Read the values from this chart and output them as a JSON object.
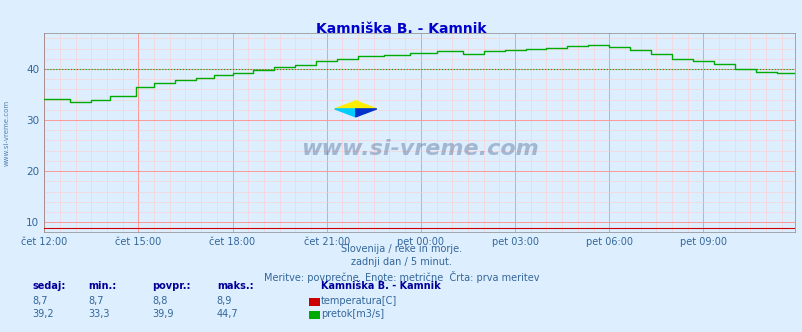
{
  "title": "Kamniška B. - Kamnik",
  "bg_color": "#ddeeff",
  "plot_bg_color": "#ddeeff",
  "grid_color_major": "#ff9999",
  "grid_color_minor": "#ffcccc",
  "title_color": "#0000cc",
  "axis_label_color": "#336699",
  "text_color": "#336699",
  "ylim": [
    8,
    47
  ],
  "yticks": [
    10,
    20,
    30,
    40
  ],
  "n_points": 288,
  "temp_color": "#cc0000",
  "flow_color": "#00aa00",
  "flow_avg": 39.9,
  "flow_min": 33.3,
  "flow_max": 44.7,
  "flow_current": 39.2,
  "temp_avg": 8.8,
  "temp_min": 8.7,
  "temp_max": 8.9,
  "temp_current": 8.7,
  "subtitle1": "Slovenija / reke in morje.",
  "subtitle2": "zadnji dan / 5 minut.",
  "subtitle3": "Meritve: povprečne  Enote: metrične  Črta: prva meritev",
  "watermark": "www.si-vreme.com",
  "xtick_labels": [
    "čet 12:00",
    "čet 15:00",
    "čet 18:00",
    "čet 21:00",
    "pet 00:00",
    "pet 03:00",
    "pet 06:00",
    "pet 09:00"
  ],
  "xtick_positions": [
    0,
    36,
    72,
    108,
    144,
    180,
    216,
    252
  ],
  "legend_title": "Kamniška B. - Kamnik",
  "legend_label1": "temperatura[C]",
  "legend_label2": "pretok[m3/s]",
  "table_headers": [
    "sedaj:",
    "min.:",
    "povpr.:",
    "maks.:"
  ],
  "table_color": "#000099",
  "sidebar_text": "www.si-vreme.com"
}
